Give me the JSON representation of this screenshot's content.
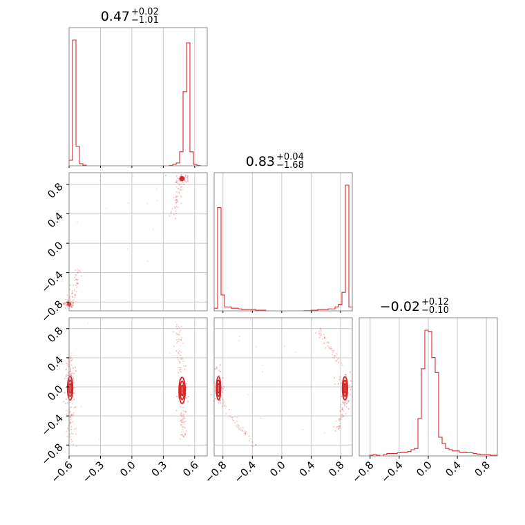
{
  "chart_data": {
    "type": "corner",
    "color": "#d62728",
    "grid": true,
    "params": [
      {
        "title": {
          "main": "0.47",
          "sup": "+0.02",
          "sub": "−1.01"
        },
        "range": [
          -0.6,
          0.72
        ],
        "ticks": [
          -0.6,
          -0.3,
          0.0,
          0.3,
          0.6
        ],
        "ticklabels": [
          "−0.6",
          "−0.3",
          "0.0",
          "0.3",
          "0.6"
        ]
      },
      {
        "title": {
          "main": "0.83",
          "sup": "+0.04",
          "sub": "−1.68"
        },
        "range": [
          -0.92,
          0.96
        ],
        "ticks": [
          -0.8,
          -0.4,
          0.0,
          0.4,
          0.8
        ],
        "ticklabels": [
          "−0.8",
          "−0.4",
          "0.0",
          "0.4",
          "0.8"
        ]
      },
      {
        "title": {
          "main": "−0.02",
          "sup": "+0.12",
          "sub": "−0.10"
        },
        "range": [
          -0.95,
          0.95
        ],
        "ticks": [
          -0.8,
          -0.4,
          0.0,
          0.4,
          0.8
        ],
        "ticklabels": [
          "−0.8",
          "−0.4",
          "0.0",
          "0.4",
          "0.8"
        ]
      }
    ],
    "hist1d": [
      {
        "param": 0,
        "bins": [
          -0.6,
          0.72
        ],
        "nbins": 40,
        "values": [
          4,
          90,
          14,
          1.5,
          0.5,
          0,
          0,
          0,
          0,
          0,
          0,
          0,
          0,
          0,
          0,
          0,
          0,
          0,
          0,
          0,
          0,
          0,
          0,
          0,
          0,
          0,
          0,
          0,
          0,
          0.3,
          1,
          2,
          10,
          53,
          88,
          10,
          1,
          0.3,
          0,
          0
        ]
      },
      {
        "param": 1,
        "bins": [
          -0.92,
          0.96
        ],
        "nbins": 40,
        "values": [
          2,
          78,
          12,
          3,
          3,
          2,
          2,
          1.5,
          1,
          1,
          1,
          1,
          0.5,
          0.5,
          0.5,
          0,
          0,
          0,
          0,
          0,
          0,
          0,
          0,
          0,
          0,
          0,
          0.2,
          0.2,
          0.5,
          0.5,
          1,
          1,
          1,
          1.5,
          1.5,
          3,
          5,
          14,
          95,
          3
        ]
      },
      {
        "param": 2,
        "bins": [
          -0.95,
          0.95
        ],
        "nbins": 40,
        "values": [
          0,
          0,
          0,
          0.5,
          1,
          0.5,
          0,
          1,
          2,
          2,
          2,
          2.5,
          3,
          3,
          3.5,
          5,
          6,
          30,
          70,
          101,
          100,
          79,
          67,
          15,
          10,
          6,
          5,
          4,
          4,
          3,
          3,
          2.5,
          2.5,
          2,
          1.5,
          1,
          1,
          1,
          0.5,
          0.5
        ]
      }
    ],
    "hist2d": [
      {
        "x": 0,
        "y": 1,
        "modes": [
          {
            "center": [
              -0.6,
              -0.83
            ],
            "spread": [
              0.012,
              0.015
            ],
            "contour_radius": [
              0.012,
              0.02
            ],
            "contours": 3
          },
          {
            "center": [
              0.48,
              0.88
            ],
            "spread": [
              0.015,
              0.02
            ],
            "contour_radius": [
              0.02,
              0.025
            ],
            "contours": 3
          }
        ],
        "tails": [
          {
            "from": [
              -0.58,
              -0.8
            ],
            "to": [
              -0.5,
              -0.35
            ]
          },
          {
            "from": [
              0.47,
              0.86
            ],
            "to": [
              0.4,
              0.35
            ]
          }
        ]
      },
      {
        "x": 0,
        "y": 2,
        "modes": [
          {
            "center": [
              -0.59,
              -0.02
            ],
            "spread": [
              0.01,
              0.1
            ],
            "contour_radius": [
              0.025,
              0.16
            ],
            "contours": 3
          },
          {
            "center": [
              0.48,
              -0.05
            ],
            "spread": [
              0.012,
              0.1
            ],
            "contour_radius": [
              0.03,
              0.18
            ],
            "contours": 3
          }
        ],
        "tails": [
          {
            "from": [
              -0.59,
              0.1
            ],
            "to": [
              -0.6,
              0.4
            ]
          },
          {
            "from": [
              -0.59,
              -0.2
            ],
            "to": [
              -0.58,
              -0.8
            ]
          },
          {
            "from": [
              0.48,
              0.2
            ],
            "to": [
              0.45,
              0.85
            ]
          },
          {
            "from": [
              0.48,
              -0.3
            ],
            "to": [
              0.5,
              -0.7
            ]
          }
        ]
      },
      {
        "x": 1,
        "y": 2,
        "modes": [
          {
            "center": [
              -0.86,
              -0.02
            ],
            "spread": [
              0.015,
              0.08
            ],
            "contour_radius": [
              0.03,
              0.16
            ],
            "contours": 3
          },
          {
            "center": [
              0.86,
              -0.02
            ],
            "spread": [
              0.02,
              0.08
            ],
            "contour_radius": [
              0.035,
              0.16
            ],
            "contours": 3
          }
        ],
        "tails": [
          {
            "from": [
              -0.82,
              -0.2
            ],
            "to": [
              -0.35,
              -0.85
            ]
          },
          {
            "from": [
              0.83,
              0.25
            ],
            "to": [
              0.5,
              0.8
            ]
          },
          {
            "from": [
              0.85,
              -0.2
            ],
            "to": [
              0.75,
              -0.6
            ]
          }
        ]
      }
    ]
  }
}
